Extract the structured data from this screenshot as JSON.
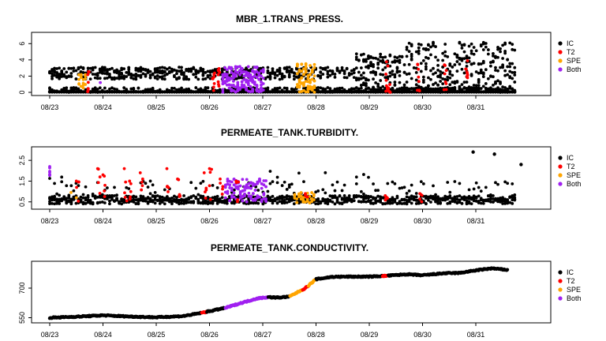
{
  "chart_data": [
    {
      "type": "scatter",
      "title": "MBR_1.TRANS_PRESS.",
      "xlabel": "",
      "ylabel": "",
      "x_range_days": [
        "08/23",
        "08/31"
      ],
      "x_tick_labels": [
        "08/23",
        "08/24",
        "08/25",
        "08/26",
        "08/27",
        "08/28",
        "08/29",
        "08/30",
        "08/31"
      ],
      "y_ticks": [
        0,
        2,
        4,
        6
      ],
      "ylim": [
        0,
        7
      ],
      "legend_position": "right",
      "series": [
        {
          "name": "IC",
          "color": "#000000",
          "description_points": "dense bands between 0 and 3.2 from 08/23 to 08/28, rising to 0–6.5 after 08/28"
        },
        {
          "name": "T2",
          "color": "#ff0000",
          "events": [
            "08/23",
            "08/26",
            "08/29",
            "08/29 18:00",
            "08/30 12:00",
            "08/31"
          ],
          "values": [
            2.5,
            3.0,
            3.5,
            3.0,
            3.5,
            3.0
          ]
        },
        {
          "name": "SPE",
          "color": "#ffa500",
          "events": [
            "08/23 12:00",
            "08/27 18:00"
          ],
          "values": [
            1.5,
            3.0
          ]
        },
        {
          "name": "Both",
          "color": "#a020f0",
          "events": [
            "08/26 06:00 - 08/27 00:00",
            "08/23 18:00"
          ],
          "values": [
            2.5,
            1.0
          ]
        }
      ]
    },
    {
      "type": "scatter",
      "title": "PERMEATE_TANK.TURBIDITY.",
      "xlabel": "",
      "ylabel": "",
      "x_tick_labels": [
        "08/23",
        "08/24",
        "08/25",
        "08/26",
        "08/27",
        "08/28",
        "08/29",
        "08/30",
        "08/31"
      ],
      "y_ticks": [
        0.5,
        1.5,
        2.5
      ],
      "ylim": [
        0.3,
        3.0
      ],
      "legend_position": "right",
      "series": [
        {
          "name": "IC",
          "color": "#000000",
          "description_points": "baseline 0.4–1.2 with spikes up to 2.0; outliers 2.9 and 2.8 near 08/30 18:00 and 08/31"
        },
        {
          "name": "T2",
          "color": "#ff0000",
          "description_points": "spikes 1.5–2.1 around 08/23–08/27"
        },
        {
          "name": "SPE",
          "color": "#ffa500",
          "description_points": "around 08/23 12:00 and 08/27 18:00 near 0.5–0.9"
        },
        {
          "name": "Both",
          "color": "#a020f0",
          "description_points": "08/23 start (2.3) and 08/26 12:00–08/27 00:00 band 0.5–1.6"
        }
      ]
    },
    {
      "type": "line",
      "title": "PERMEATE_TANK.CONDUCTIVITY.",
      "xlabel": "",
      "ylabel": "",
      "x_tick_labels": [
        "08/23",
        "08/24",
        "08/25",
        "08/26",
        "08/27",
        "08/28",
        "08/29",
        "08/30",
        "08/31"
      ],
      "y_ticks": [
        550,
        700
      ],
      "ylim": [
        540,
        820
      ],
      "legend_position": "right",
      "x_days": [
        0,
        0.5,
        1,
        1.5,
        2,
        2.5,
        2.8,
        3,
        3.3,
        3.6,
        3.9,
        4.1,
        4.3,
        4.5,
        4.8,
        5,
        5.3,
        5.6,
        6,
        6.3,
        6.7,
        7,
        7.4,
        7.7,
        8,
        8.3,
        8.6
      ],
      "y_values": [
        550,
        555,
        562,
        556,
        552,
        558,
        572,
        583,
        600,
        625,
        648,
        654,
        652,
        657,
        700,
        745,
        757,
        758,
        758,
        762,
        770,
        765,
        775,
        777,
        790,
        800,
        792
      ],
      "series": [
        {
          "name": "IC",
          "color": "#000000",
          "description_points": "continuous rise from ~550 to ~800"
        },
        {
          "name": "T2",
          "color": "#ff0000",
          "events_days": [
            2.9,
            4.8,
            6.3
          ]
        },
        {
          "name": "SPE",
          "color": "#ffa500",
          "segment_days": [
            4.5,
            5.0
          ]
        },
        {
          "name": "Both",
          "color": "#a020f0",
          "segment_days": [
            3.3,
            4.1
          ]
        }
      ]
    }
  ]
}
